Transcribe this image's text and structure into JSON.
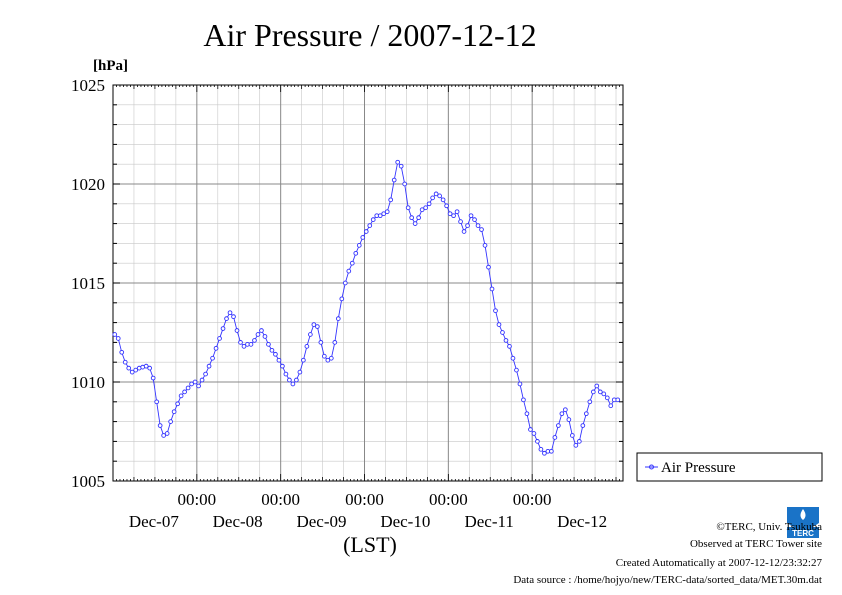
{
  "chart_data": {
    "type": "line",
    "title": "Air Pressure / 2007-12-12",
    "ylabel_unit": "[hPa]",
    "xlabel": "(LST)",
    "ylim": [
      1005,
      1025
    ],
    "yticks": [
      1005,
      1010,
      1015,
      1020,
      1025
    ],
    "xlim_hours": [
      0,
      146
    ],
    "xticks": [
      {
        "time": "00:00",
        "date": "Dec-07",
        "hour": 24
      },
      {
        "time": "00:00",
        "date": "Dec-08",
        "hour": 48
      },
      {
        "time": "00:00",
        "date": "Dec-09",
        "hour": 72
      },
      {
        "time": "00:00",
        "date": "Dec-10",
        "hour": 96
      },
      {
        "time": "00:00",
        "date": "Dec-11",
        "hour": 120
      }
    ],
    "x_minor_step_hours": 6,
    "y_minor_step": 1,
    "grid": true,
    "legend_position": "right",
    "series": [
      {
        "name": "Air Pressure",
        "color": "#3333ff",
        "values": [
          [
            0.5,
            1012.4
          ],
          [
            1.5,
            1012.2
          ],
          [
            2.5,
            1011.5
          ],
          [
            3.5,
            1011.0
          ],
          [
            4.5,
            1010.7
          ],
          [
            5.5,
            1010.5
          ],
          [
            6.5,
            1010.6
          ],
          [
            7.5,
            1010.7
          ],
          [
            8.5,
            1010.75
          ],
          [
            9.5,
            1010.8
          ],
          [
            10.5,
            1010.7
          ],
          [
            11.5,
            1010.2
          ],
          [
            12.5,
            1009.0
          ],
          [
            13.5,
            1007.8
          ],
          [
            14.5,
            1007.3
          ],
          [
            15.5,
            1007.4
          ],
          [
            16.5,
            1008.0
          ],
          [
            17.5,
            1008.5
          ],
          [
            18.5,
            1008.9
          ],
          [
            19.5,
            1009.3
          ],
          [
            20.5,
            1009.5
          ],
          [
            21.5,
            1009.7
          ],
          [
            22.5,
            1009.9
          ],
          [
            23.5,
            1010.0
          ],
          [
            24.5,
            1009.8
          ],
          [
            25.5,
            1010.1
          ],
          [
            26.5,
            1010.4
          ],
          [
            27.5,
            1010.8
          ],
          [
            28.5,
            1011.2
          ],
          [
            29.5,
            1011.7
          ],
          [
            30.5,
            1012.2
          ],
          [
            31.5,
            1012.7
          ],
          [
            32.5,
            1013.2
          ],
          [
            33.5,
            1013.5
          ],
          [
            34.5,
            1013.3
          ],
          [
            35.5,
            1012.6
          ],
          [
            36.5,
            1012.0
          ],
          [
            37.5,
            1011.8
          ],
          [
            38.5,
            1011.9
          ],
          [
            39.5,
            1011.9
          ],
          [
            40.5,
            1012.1
          ],
          [
            41.5,
            1012.4
          ],
          [
            42.5,
            1012.6
          ],
          [
            43.5,
            1012.3
          ],
          [
            44.5,
            1011.9
          ],
          [
            45.5,
            1011.6
          ],
          [
            46.5,
            1011.4
          ],
          [
            47.5,
            1011.1
          ],
          [
            48.5,
            1010.8
          ],
          [
            49.5,
            1010.4
          ],
          [
            50.5,
            1010.1
          ],
          [
            51.5,
            1009.9
          ],
          [
            52.5,
            1010.1
          ],
          [
            53.5,
            1010.5
          ],
          [
            54.5,
            1011.1
          ],
          [
            55.5,
            1011.8
          ],
          [
            56.5,
            1012.4
          ],
          [
            57.5,
            1012.9
          ],
          [
            58.5,
            1012.8
          ],
          [
            59.5,
            1012.0
          ],
          [
            60.5,
            1011.3
          ],
          [
            61.5,
            1011.1
          ],
          [
            62.5,
            1011.2
          ],
          [
            63.5,
            1012.0
          ],
          [
            64.5,
            1013.2
          ],
          [
            65.5,
            1014.2
          ],
          [
            66.5,
            1015.0
          ],
          [
            67.5,
            1015.6
          ],
          [
            68.5,
            1016.0
          ],
          [
            69.5,
            1016.5
          ],
          [
            70.5,
            1016.9
          ],
          [
            71.5,
            1017.3
          ],
          [
            72.5,
            1017.6
          ],
          [
            73.5,
            1017.9
          ],
          [
            74.5,
            1018.2
          ],
          [
            75.5,
            1018.4
          ],
          [
            76.5,
            1018.4
          ],
          [
            77.5,
            1018.5
          ],
          [
            78.5,
            1018.6
          ],
          [
            79.5,
            1019.2
          ],
          [
            80.5,
            1020.2
          ],
          [
            81.5,
            1021.1
          ],
          [
            82.5,
            1020.9
          ],
          [
            83.5,
            1020.0
          ],
          [
            84.5,
            1018.8
          ],
          [
            85.5,
            1018.3
          ],
          [
            86.5,
            1018.0
          ],
          [
            87.5,
            1018.3
          ],
          [
            88.5,
            1018.7
          ],
          [
            89.5,
            1018.8
          ],
          [
            90.5,
            1019.0
          ],
          [
            91.5,
            1019.3
          ],
          [
            92.5,
            1019.5
          ],
          [
            93.5,
            1019.4
          ],
          [
            94.5,
            1019.2
          ],
          [
            95.5,
            1018.9
          ],
          [
            96.5,
            1018.5
          ],
          [
            97.5,
            1018.4
          ],
          [
            98.5,
            1018.6
          ],
          [
            99.5,
            1018.1
          ],
          [
            100.5,
            1017.6
          ],
          [
            101.5,
            1017.9
          ],
          [
            102.5,
            1018.4
          ],
          [
            103.5,
            1018.2
          ],
          [
            104.5,
            1017.9
          ],
          [
            105.5,
            1017.7
          ],
          [
            106.5,
            1016.9
          ],
          [
            107.5,
            1015.8
          ],
          [
            108.5,
            1014.7
          ],
          [
            109.5,
            1013.6
          ],
          [
            110.5,
            1012.9
          ],
          [
            111.5,
            1012.5
          ],
          [
            112.5,
            1012.1
          ],
          [
            113.5,
            1011.8
          ],
          [
            114.5,
            1011.2
          ],
          [
            115.5,
            1010.6
          ],
          [
            116.5,
            1009.9
          ],
          [
            117.5,
            1009.1
          ],
          [
            118.5,
            1008.4
          ],
          [
            119.5,
            1007.6
          ],
          [
            120.5,
            1007.4
          ],
          [
            121.5,
            1007.0
          ],
          [
            122.5,
            1006.6
          ],
          [
            123.5,
            1006.4
          ],
          [
            124.5,
            1006.5
          ],
          [
            125.5,
            1006.5
          ],
          [
            126.5,
            1007.2
          ],
          [
            127.5,
            1007.8
          ],
          [
            128.5,
            1008.4
          ],
          [
            129.5,
            1008.6
          ],
          [
            130.5,
            1008.1
          ],
          [
            131.5,
            1007.3
          ],
          [
            132.5,
            1006.8
          ],
          [
            133.5,
            1007.0
          ],
          [
            134.5,
            1007.8
          ],
          [
            135.5,
            1008.4
          ],
          [
            136.5,
            1009.0
          ],
          [
            137.5,
            1009.5
          ],
          [
            138.5,
            1009.8
          ],
          [
            139.5,
            1009.5
          ],
          [
            140.5,
            1009.4
          ],
          [
            141.5,
            1009.2
          ],
          [
            142.5,
            1008.8
          ],
          [
            143.5,
            1009.1
          ],
          [
            144.5,
            1009.1
          ]
        ]
      }
    ]
  },
  "legend": {
    "label": "Air Pressure"
  },
  "footer": {
    "copyright": "©TERC, Univ. Tsukuba",
    "observed": "Observed at TERC Tower site",
    "created": "Created Automatically at 2007-12-12/23:32:27",
    "source": "Data source : /home/hojyo/new/TERC-data/sorted_data/MET.30m.dat"
  },
  "logo": {
    "label": "TERC",
    "color": "#1a73c7"
  }
}
